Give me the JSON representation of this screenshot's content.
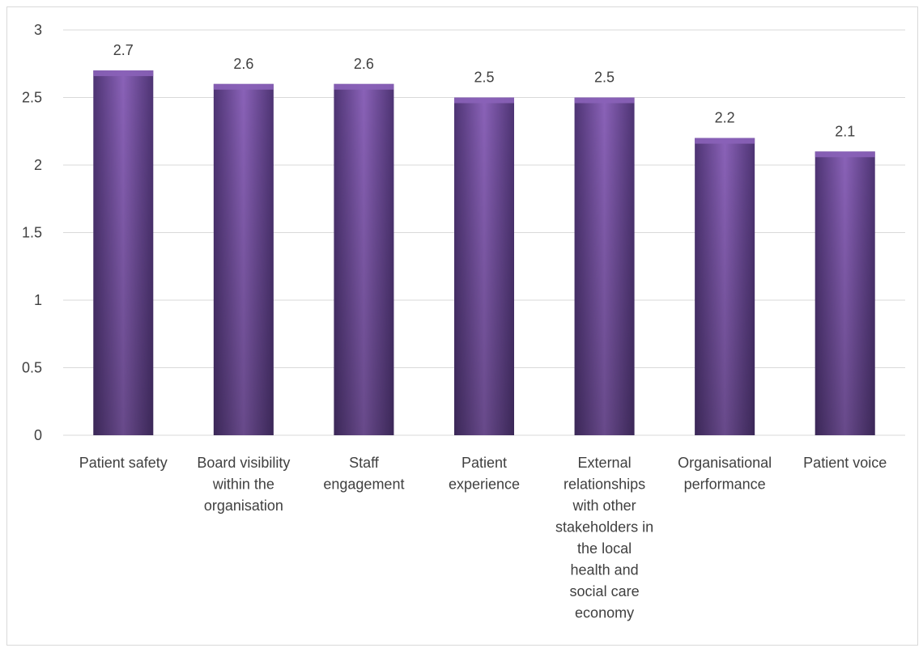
{
  "chart_data": {
    "type": "bar",
    "categories": [
      [
        "Patient safety"
      ],
      [
        "Board visibility",
        "within the",
        "organisation"
      ],
      [
        "Staff",
        "engagement"
      ],
      [
        "Patient",
        "experience"
      ],
      [
        "External",
        "relationships",
        "with other",
        "stakeholders in",
        "the local",
        "health and",
        "social care",
        "economy"
      ],
      [
        "Organisational",
        "performance"
      ],
      [
        "Patient voice"
      ]
    ],
    "values": [
      2.7,
      2.6,
      2.6,
      2.5,
      2.5,
      2.2,
      2.1
    ],
    "data_labels": [
      "2.7",
      "2.6",
      "2.6",
      "2.5",
      "2.5",
      "2.2",
      "2.1"
    ],
    "ylim": [
      0,
      3
    ],
    "yticks": [
      "0",
      "0.5",
      "1",
      "1.5",
      "2",
      "2.5",
      "3"
    ],
    "grid": true,
    "legend": "none",
    "colors": {
      "bar_light": "#8a62b8",
      "bar_mid": "#7450a3",
      "bar_dark": "#4e3474",
      "grid": "#d9d9d9",
      "text": "#404040"
    }
  }
}
